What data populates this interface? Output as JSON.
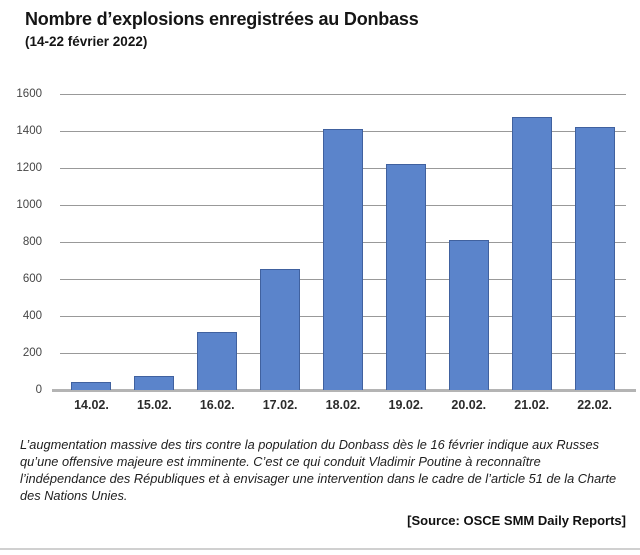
{
  "header": {
    "title": "Nombre d’explosions enregistrées au Donbass",
    "subtitle": "(14-22 février 2022)"
  },
  "chart_data": {
    "type": "bar",
    "title": "Nombre d’explosions enregistrées au Donbass (14-22 février 2022)",
    "categories": [
      "14.02.",
      "15.02.",
      "16.02.",
      "17.02.",
      "18.02.",
      "19.02.",
      "20.02.",
      "21.02.",
      "22.02."
    ],
    "values": [
      45,
      78,
      315,
      655,
      1410,
      1220,
      810,
      1475,
      1420
    ],
    "xlabel": "",
    "ylabel": "",
    "ylim": [
      0,
      1600
    ],
    "ytick_step": 200,
    "yticks": [
      0,
      200,
      400,
      600,
      800,
      1000,
      1200,
      1400,
      1600
    ],
    "grid": true,
    "legend": false,
    "bar_color": "#5B84CB",
    "bar_border_color": "#40619F",
    "gridline_color": "#999999",
    "baseline_color": "#B4B4B4"
  },
  "footer": {
    "note": "L’augmentation massive des tirs contre la population du Donbass dès le 16 février indique aux Russes qu’une offensive majeure est imminente. C’est ce qui conduit Vladimir Poutine à reconnaître l’indépendance des Républiques et à envisager une intervention dans le cadre de l’article 51 de la Charte des Nations Unies.",
    "source": "[Source: OSCE SMM Daily Reports]"
  }
}
